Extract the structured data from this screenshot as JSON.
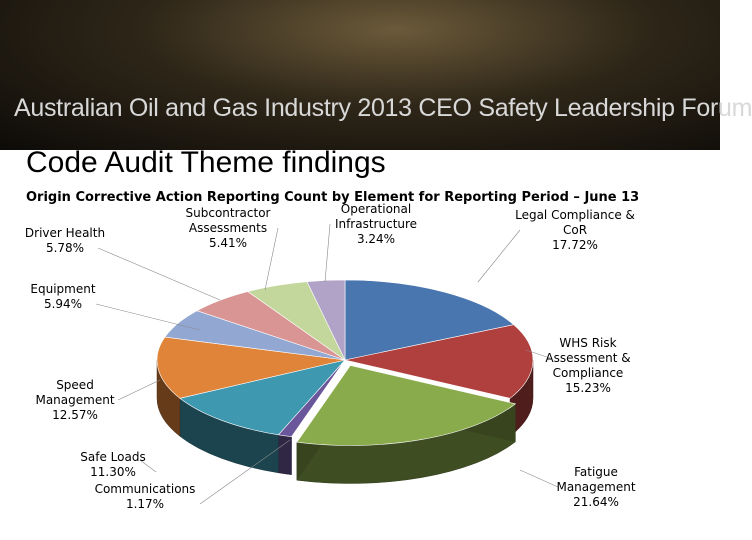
{
  "banner": {
    "text": "Australian Oil and Gas Industry 2013 CEO Safety Leadership Forum"
  },
  "chart_data": {
    "type": "pie",
    "title": "Code Audit Theme findings",
    "subtitle": "Origin Corrective Action Reporting Count by Element for Reporting Period – June 13",
    "categories": [
      "Legal Compliance & CoR",
      "WHS Risk Assessment & Compliance",
      "Fatigue Management",
      "Communications",
      "Safe Loads",
      "Speed Management",
      "Equipment",
      "Driver Health",
      "Subcontractor Assessments",
      "Operational Infrastructure"
    ],
    "values": [
      17.72,
      15.23,
      21.64,
      1.17,
      11.3,
      12.57,
      5.94,
      5.78,
      5.41,
      3.24
    ],
    "value_labels": [
      "17.72%",
      "15.23%",
      "21.64%",
      "1.17%",
      "11.30%",
      "12.57%",
      "5.94%",
      "5.78%",
      "5.41%",
      "3.24%"
    ],
    "colors": [
      "#4a76b0",
      "#b0403e",
      "#8aab4b",
      "#6a569a",
      "#3e98b0",
      "#e0843a",
      "#92a8d3",
      "#d99593",
      "#c3d69b",
      "#b1a2c7"
    ]
  }
}
